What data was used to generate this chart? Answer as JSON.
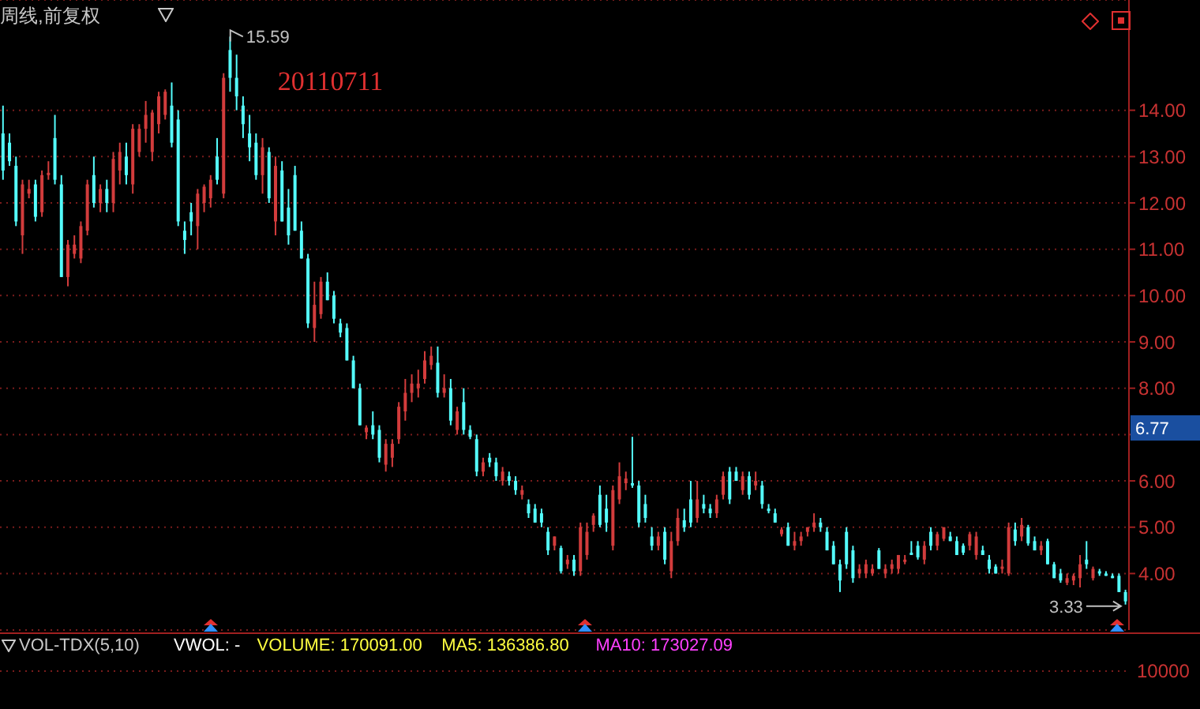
{
  "chart_data": [
    {
      "type": "candlestick",
      "title": "周线,前复权",
      "categories": [
        null,
        null,
        null,
        null,
        null,
        null,
        null,
        null,
        null,
        null,
        null,
        null,
        null,
        null,
        null,
        null,
        null,
        null,
        null,
        null,
        null,
        null,
        null,
        null,
        null,
        null,
        null,
        null,
        null,
        null,
        null,
        null,
        null,
        null,
        null,
        null,
        null,
        null,
        null,
        null,
        null,
        null,
        null,
        null,
        null,
        null,
        null,
        null,
        null,
        null,
        null,
        null,
        null,
        null,
        null,
        null,
        null,
        null,
        null,
        null,
        null,
        null,
        null,
        null,
        null,
        null,
        null,
        null,
        null,
        null,
        null,
        null,
        null,
        null,
        null,
        null,
        null,
        null,
        null,
        null,
        null,
        null,
        null,
        null,
        null,
        null,
        null,
        null,
        null,
        null,
        null,
        null,
        null,
        null,
        null,
        null,
        null,
        null,
        null,
        null,
        null,
        null,
        null,
        null,
        null,
        null,
        null,
        null,
        null,
        null,
        null,
        null,
        null,
        null,
        null,
        null,
        null,
        null,
        null,
        null,
        null,
        null,
        null,
        null,
        null,
        null,
        null,
        null,
        null,
        null,
        null,
        null,
        null,
        null,
        null,
        null,
        null,
        null,
        null,
        null,
        null,
        null,
        null,
        null,
        null,
        null,
        null,
        null,
        null,
        null,
        null,
        null,
        null,
        null,
        null,
        null,
        null,
        null,
        null,
        null,
        null,
        null,
        null,
        null,
        null,
        null,
        null,
        null,
        null,
        null,
        null,
        null,
        null,
        null
      ],
      "ohlc": [
        [
          13.5,
          14.1,
          12.5,
          12.7
        ],
        [
          13.3,
          13.5,
          12.8,
          12.9
        ],
        [
          12.8,
          13.0,
          11.5,
          11.6
        ],
        [
          11.3,
          12.5,
          10.9,
          12.4
        ],
        [
          12.2,
          12.5,
          12.1,
          12.3
        ],
        [
          12.4,
          12.5,
          11.6,
          11.7
        ],
        [
          11.8,
          12.7,
          11.7,
          12.6
        ],
        [
          12.6,
          12.9,
          12.5,
          12.65
        ],
        [
          13.4,
          13.9,
          12.4,
          12.5
        ],
        [
          12.4,
          12.6,
          10.4,
          10.4
        ],
        [
          10.4,
          11.2,
          10.2,
          11.1
        ],
        [
          10.9,
          11.3,
          10.8,
          11.1
        ],
        [
          10.8,
          11.6,
          10.7,
          11.5
        ],
        [
          11.4,
          12.5,
          11.3,
          12.4
        ],
        [
          12.6,
          13.0,
          11.9,
          12.0
        ],
        [
          12.0,
          12.4,
          11.8,
          12.3
        ],
        [
          12.3,
          12.5,
          11.8,
          12.0
        ],
        [
          12.0,
          13.1,
          11.8,
          12.95
        ],
        [
          12.7,
          13.3,
          12.4,
          13.1
        ],
        [
          13.0,
          13.3,
          12.4,
          12.6
        ],
        [
          12.4,
          13.7,
          12.2,
          13.6
        ],
        [
          13.1,
          13.7,
          13.0,
          13.6
        ],
        [
          13.6,
          14.2,
          13.3,
          13.9
        ],
        [
          13.1,
          14.0,
          12.9,
          13.95
        ],
        [
          13.7,
          14.4,
          13.5,
          14.3
        ],
        [
          13.9,
          14.45,
          13.8,
          14.4
        ],
        [
          14.1,
          14.6,
          13.2,
          13.3
        ],
        [
          13.8,
          14.0,
          11.5,
          11.6
        ],
        [
          11.4,
          11.6,
          10.9,
          11.2
        ],
        [
          11.8,
          12.0,
          11.3,
          11.6
        ],
        [
          11.5,
          12.3,
          11.0,
          12.2
        ],
        [
          12.0,
          12.4,
          11.8,
          12.35
        ],
        [
          12.1,
          12.6,
          11.9,
          12.5
        ],
        [
          13.0,
          13.4,
          12.4,
          12.5
        ],
        [
          12.2,
          14.8,
          12.1,
          14.7
        ],
        [
          15.3,
          15.59,
          14.4,
          14.7
        ],
        [
          14.7,
          15.2,
          14.0,
          14.3
        ],
        [
          14.1,
          14.3,
          13.4,
          13.7
        ],
        [
          13.5,
          13.9,
          12.9,
          13.2
        ],
        [
          13.3,
          13.5,
          12.5,
          12.6
        ],
        [
          12.6,
          13.4,
          12.2,
          13.2
        ],
        [
          13.1,
          13.2,
          12.0,
          12.1
        ],
        [
          11.6,
          13.0,
          11.3,
          12.8
        ],
        [
          12.7,
          12.9,
          11.6,
          11.6
        ],
        [
          11.9,
          12.3,
          11.1,
          11.3
        ],
        [
          12.6,
          12.8,
          11.4,
          11.4
        ],
        [
          11.4,
          11.6,
          10.8,
          10.8
        ],
        [
          10.8,
          10.9,
          9.3,
          9.4
        ],
        [
          9.3,
          10.3,
          9.0,
          9.8
        ],
        [
          9.6,
          10.4,
          9.5,
          10.3
        ],
        [
          10.3,
          10.5,
          9.9,
          9.9
        ],
        [
          10.0,
          10.1,
          9.4,
          9.5
        ],
        [
          9.4,
          9.5,
          9.1,
          9.2
        ],
        [
          9.3,
          9.4,
          8.6,
          8.6
        ],
        [
          8.6,
          8.7,
          8.0,
          8.0
        ],
        [
          8.0,
          8.1,
          7.2,
          7.2
        ],
        [
          7.05,
          7.2,
          6.9,
          7.15
        ],
        [
          7.2,
          7.5,
          6.9,
          7.0
        ],
        [
          7.1,
          7.2,
          6.4,
          6.5
        ],
        [
          6.35,
          6.9,
          6.2,
          6.8
        ],
        [
          6.5,
          6.9,
          6.3,
          6.8
        ],
        [
          6.9,
          7.7,
          6.8,
          7.6
        ],
        [
          7.5,
          8.2,
          7.3,
          7.9
        ],
        [
          7.9,
          8.3,
          7.7,
          8.1
        ],
        [
          8.0,
          8.4,
          7.8,
          8.1
        ],
        [
          8.2,
          8.8,
          8.1,
          8.6
        ],
        [
          8.5,
          8.9,
          8.4,
          8.7
        ],
        [
          8.55,
          8.9,
          7.8,
          7.9
        ],
        [
          7.9,
          8.3,
          7.8,
          8.0
        ],
        [
          8.0,
          8.2,
          7.2,
          7.3
        ],
        [
          7.1,
          7.6,
          7.0,
          7.5
        ],
        [
          7.7,
          8.0,
          7.0,
          7.1
        ],
        [
          7.1,
          7.2,
          6.9,
          6.95
        ],
        [
          6.9,
          7.0,
          6.1,
          6.2
        ],
        [
          6.2,
          6.5,
          6.1,
          6.4
        ],
        [
          6.5,
          6.6,
          6.3,
          6.4
        ],
        [
          6.4,
          6.5,
          6.0,
          6.1
        ],
        [
          6.0,
          6.3,
          5.9,
          6.2
        ],
        [
          6.1,
          6.2,
          5.9,
          6.0
        ],
        [
          6.0,
          6.1,
          5.7,
          5.8
        ],
        [
          5.7,
          5.9,
          5.6,
          5.8
        ],
        [
          5.5,
          5.6,
          5.2,
          5.3
        ],
        [
          5.4,
          5.5,
          5.1,
          5.1
        ],
        [
          5.3,
          5.4,
          5.0,
          5.1
        ],
        [
          4.9,
          5.0,
          4.4,
          4.5
        ],
        [
          4.6,
          4.8,
          4.5,
          4.8
        ],
        [
          4.55,
          4.6,
          4.0,
          4.05
        ],
        [
          4.2,
          4.4,
          4.1,
          4.3
        ],
        [
          4.3,
          4.4,
          3.95,
          4.05
        ],
        [
          4.05,
          5.1,
          3.95,
          5.0
        ],
        [
          4.4,
          5.1,
          4.3,
          4.9
        ],
        [
          5.05,
          5.3,
          4.9,
          5.25
        ],
        [
          5.7,
          5.9,
          5.0,
          5.05
        ],
        [
          5.4,
          5.7,
          4.9,
          5.1
        ],
        [
          4.6,
          5.9,
          4.5,
          5.8
        ],
        [
          5.6,
          6.4,
          5.5,
          6.1
        ],
        [
          5.95,
          6.2,
          5.8,
          6.05
        ],
        [
          5.95,
          6.95,
          5.85,
          5.9
        ],
        [
          5.9,
          6.0,
          5.0,
          5.1
        ],
        [
          5.5,
          5.7,
          5.1,
          5.2
        ],
        [
          4.8,
          5.0,
          4.5,
          4.6
        ],
        [
          4.6,
          4.9,
          4.5,
          4.8
        ],
        [
          4.9,
          5.0,
          4.2,
          4.3
        ],
        [
          4.05,
          4.9,
          3.9,
          4.7
        ],
        [
          4.7,
          5.4,
          4.6,
          5.2
        ],
        [
          5.15,
          5.4,
          4.9,
          5.0
        ],
        [
          5.6,
          6.0,
          5.0,
          5.1
        ],
        [
          5.2,
          6.0,
          5.1,
          5.6
        ],
        [
          5.5,
          5.7,
          5.3,
          5.4
        ],
        [
          5.4,
          5.5,
          5.2,
          5.3
        ],
        [
          5.3,
          5.7,
          5.2,
          5.6
        ],
        [
          5.7,
          6.2,
          5.6,
          6.1
        ],
        [
          6.2,
          6.3,
          5.5,
          5.6
        ],
        [
          6.2,
          6.3,
          6.0,
          6.0
        ],
        [
          5.8,
          6.2,
          5.7,
          6.1
        ],
        [
          6.1,
          6.2,
          5.6,
          5.7
        ],
        [
          5.9,
          6.2,
          5.8,
          6.0
        ],
        [
          5.9,
          6.0,
          5.4,
          5.5
        ],
        [
          5.4,
          5.5,
          5.3,
          5.35
        ],
        [
          5.3,
          5.4,
          5.1,
          5.1
        ],
        [
          4.85,
          5.0,
          4.8,
          4.95
        ],
        [
          5.0,
          5.1,
          4.6,
          4.6
        ],
        [
          4.6,
          4.9,
          4.5,
          4.7
        ],
        [
          4.7,
          4.9,
          4.6,
          4.8
        ],
        [
          4.9,
          5.0,
          4.8,
          5.0
        ],
        [
          5.0,
          5.3,
          4.9,
          5.1
        ],
        [
          5.1,
          5.2,
          4.9,
          5.0
        ],
        [
          4.9,
          5.0,
          4.5,
          4.5
        ],
        [
          4.6,
          4.7,
          4.2,
          4.2
        ],
        [
          4.2,
          4.3,
          3.6,
          3.85
        ],
        [
          4.9,
          5.0,
          4.1,
          4.2
        ],
        [
          4.5,
          4.6,
          3.8,
          3.9
        ],
        [
          4.0,
          4.2,
          3.9,
          4.1
        ],
        [
          4.0,
          4.3,
          3.9,
          4.2
        ],
        [
          4.0,
          4.2,
          3.95,
          4.1
        ],
        [
          4.5,
          4.55,
          4.1,
          4.1
        ],
        [
          4.0,
          4.2,
          3.9,
          4.1
        ],
        [
          4.1,
          4.3,
          4.0,
          4.2
        ],
        [
          4.1,
          4.4,
          4.0,
          4.4
        ],
        [
          4.25,
          4.4,
          4.2,
          4.3
        ],
        [
          4.45,
          4.7,
          4.4,
          4.4
        ],
        [
          4.6,
          4.7,
          4.3,
          4.35
        ],
        [
          4.3,
          4.7,
          4.2,
          4.6
        ],
        [
          4.9,
          5.0,
          4.5,
          4.6
        ],
        [
          4.6,
          4.9,
          4.5,
          4.85
        ],
        [
          4.75,
          5.0,
          4.7,
          5.0
        ],
        [
          4.8,
          4.9,
          4.7,
          4.7
        ],
        [
          4.7,
          4.8,
          4.4,
          4.4
        ],
        [
          4.6,
          4.65,
          4.4,
          4.45
        ],
        [
          4.6,
          4.9,
          4.5,
          4.85
        ],
        [
          4.4,
          4.9,
          4.3,
          4.8
        ],
        [
          4.5,
          4.6,
          4.4,
          4.4
        ],
        [
          4.3,
          4.4,
          4.0,
          4.1
        ],
        [
          4.15,
          4.2,
          4.0,
          4.0
        ],
        [
          4.1,
          4.3,
          4.0,
          4.15
        ],
        [
          4.0,
          5.1,
          3.95,
          5.0
        ],
        [
          4.95,
          5.1,
          4.6,
          4.7
        ],
        [
          4.8,
          5.2,
          4.7,
          5.05
        ],
        [
          5.0,
          5.05,
          4.6,
          4.65
        ],
        [
          4.7,
          4.8,
          4.5,
          4.5
        ],
        [
          4.5,
          4.7,
          4.4,
          4.6
        ],
        [
          4.7,
          4.75,
          4.2,
          4.2
        ],
        [
          4.2,
          4.25,
          3.9,
          3.9
        ],
        [
          4.0,
          4.1,
          3.8,
          3.85
        ],
        [
          3.8,
          4.0,
          3.75,
          3.9
        ],
        [
          3.85,
          4.0,
          3.75,
          3.95
        ],
        [
          3.9,
          4.4,
          3.7,
          4.2
        ],
        [
          4.3,
          4.7,
          4.1,
          4.2
        ],
        [
          3.9,
          4.15,
          3.85,
          4.1
        ],
        [
          4.05,
          4.1,
          3.95,
          4.0
        ],
        [
          4.0,
          4.05,
          3.95,
          3.95
        ],
        [
          3.95,
          4.0,
          3.9,
          3.9
        ],
        [
          3.95,
          4.0,
          3.6,
          3.6
        ],
        [
          3.6,
          3.65,
          3.33,
          3.4
        ]
      ],
      "ylim": [
        2.78,
        16.38
      ],
      "yticks": [
        {
          "value": 4,
          "label": "4.00"
        },
        {
          "value": 5,
          "label": "5.00"
        },
        {
          "value": 6,
          "label": "6.00"
        },
        {
          "value": 7,
          "label": null
        },
        {
          "value": 8,
          "label": "8.00"
        },
        {
          "value": 9,
          "label": "9.00"
        },
        {
          "value": 10,
          "label": "10.00"
        },
        {
          "value": 11,
          "label": "11.00"
        },
        {
          "value": 12,
          "label": "12.00"
        },
        {
          "value": 13,
          "label": "13.00"
        },
        {
          "value": 14,
          "label": "14.00"
        }
      ],
      "grid": "y",
      "tick_labels": "y",
      "annotations": [
        "15.59",
        "3.33",
        "20110711",
        "6.77"
      ]
    },
    {
      "type": "other",
      "title": "VOL-TDX(5,10)",
      "annotations": [
        "VWOL: -",
        "VOLUME: 170091.00",
        "MA5: 136386.80",
        "MA10: 173027.09",
        "10000"
      ]
    }
  ]
}
